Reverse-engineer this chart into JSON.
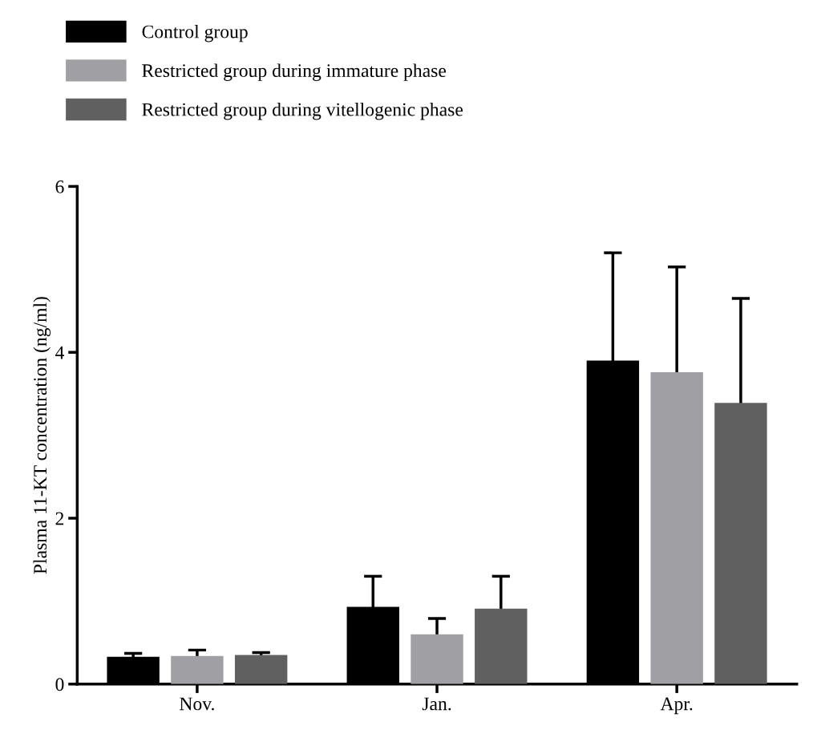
{
  "chart_data": {
    "type": "bar",
    "ylabel": "Plasma 11-KT concentration (ng/ml)",
    "categories": [
      "Nov.",
      "Jan.",
      "Apr."
    ],
    "series": [
      {
        "name": "Control group",
        "color": "#000000",
        "values": [
          0.33,
          0.93,
          3.9
        ],
        "errors": [
          0.04,
          0.37,
          1.3
        ]
      },
      {
        "name": "Restricted group during immature phase",
        "color": "#a0a0a4",
        "values": [
          0.34,
          0.6,
          3.76
        ],
        "errors": [
          0.07,
          0.19,
          1.27
        ]
      },
      {
        "name": "Restricted group during vitellogenic phase",
        "color": "#606060",
        "values": [
          0.35,
          0.91,
          3.39
        ],
        "errors": [
          0.03,
          0.39,
          1.26
        ]
      }
    ],
    "ylim": [
      0,
      6
    ],
    "yticks": [
      0,
      2,
      4,
      6
    ],
    "grid": false,
    "legend": "top left"
  }
}
